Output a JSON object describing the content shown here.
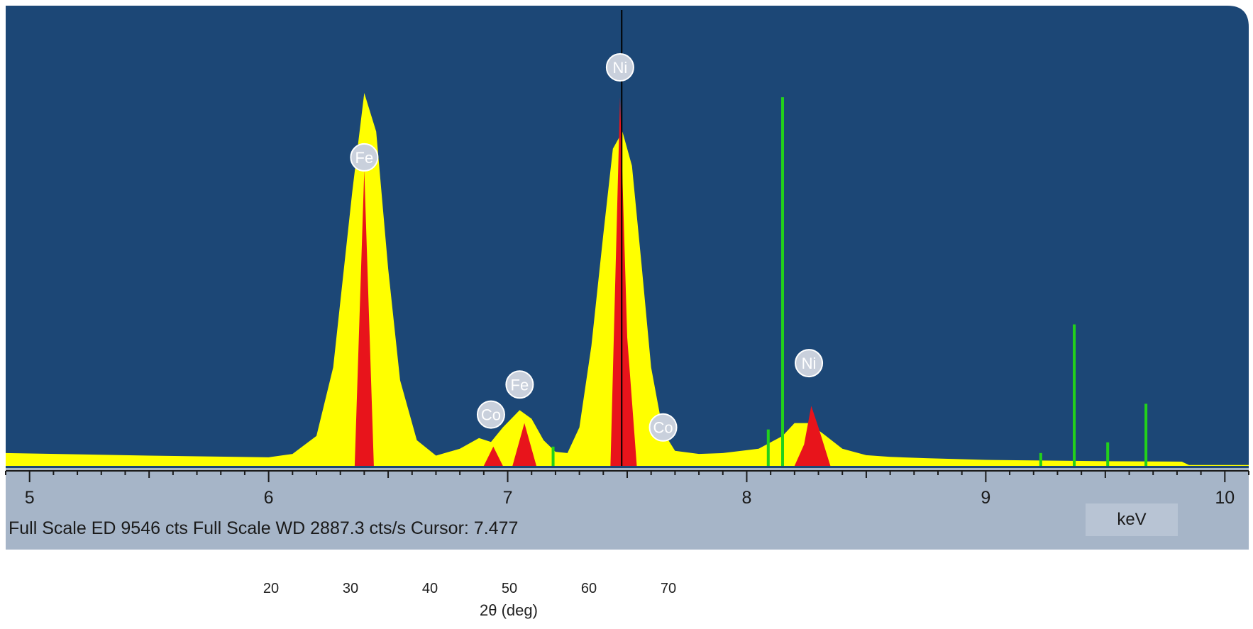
{
  "chart_data": {
    "type": "area",
    "xlabel": "keV",
    "xlim": [
      4.9,
      10.1
    ],
    "ylim": [
      0,
      9546
    ],
    "x_ticks": [
      "5",
      "6",
      "7",
      "8",
      "9",
      "10"
    ],
    "grid": false,
    "legend": "none",
    "series": [
      {
        "color": "#ffff00",
        "x": [
          4.9,
          5.5,
          6.0,
          6.1,
          6.2,
          6.27,
          6.35,
          6.4,
          6.45,
          6.5,
          6.55,
          6.62,
          6.7,
          6.8,
          6.88,
          6.93,
          6.98,
          7.05,
          7.1,
          7.15,
          7.2,
          7.25,
          7.3,
          7.35,
          7.4,
          7.44,
          7.48,
          7.52,
          7.56,
          7.6,
          7.65,
          7.7,
          7.8,
          7.9,
          8.05,
          8.15,
          8.2,
          8.26,
          8.32,
          8.4,
          8.5,
          8.6,
          8.75,
          9.0,
          9.5,
          9.82,
          9.85,
          10.1
        ],
        "values": [
          300,
          240,
          200,
          280,
          700,
          2300,
          6400,
          8700,
          7800,
          4600,
          2000,
          600,
          240,
          400,
          650,
          560,
          900,
          1300,
          1100,
          600,
          330,
          300,
          900,
          2800,
          5400,
          7400,
          7800,
          7000,
          4700,
          2300,
          800,
          350,
          280,
          300,
          400,
          700,
          1000,
          1000,
          750,
          400,
          250,
          210,
          180,
          140,
          110,
          100,
          20,
          20
        ]
      },
      {
        "color": "#e8141b",
        "x": [
          4.9,
          6.36,
          6.4,
          6.44,
          6.9,
          6.94,
          6.98,
          7.02,
          7.07,
          7.12,
          7.43,
          7.47,
          7.5,
          7.54,
          7.6,
          8.2,
          8.24,
          8.27,
          8.3,
          8.35,
          8.7,
          10.1
        ],
        "values": [
          0,
          0,
          6900,
          0,
          0,
          450,
          0,
          0,
          1000,
          0,
          0,
          8600,
          3000,
          0,
          0,
          0,
          500,
          1400,
          900,
          0,
          0,
          0
        ]
      }
    ],
    "wd_lines": [
      {
        "x": 7.19,
        "y": 450
      },
      {
        "x": 8.09,
        "y": 850
      },
      {
        "x": 8.15,
        "y": 8600
      },
      {
        "x": 9.23,
        "y": 300
      },
      {
        "x": 9.37,
        "y": 3300
      },
      {
        "x": 9.51,
        "y": 550
      },
      {
        "x": 9.67,
        "y": 1450
      }
    ],
    "element_markers": [
      {
        "label": "Fe",
        "x": 6.4,
        "y": 6900
      },
      {
        "label": "Co",
        "x": 6.93,
        "y": 900
      },
      {
        "label": "Fe",
        "x": 7.05,
        "y": 1600
      },
      {
        "label": "Ni",
        "x": 7.47,
        "y": 9000
      },
      {
        "label": "Co",
        "x": 7.65,
        "y": 600
      },
      {
        "label": "Ni",
        "x": 8.26,
        "y": 2100
      }
    ],
    "cursor": 7.477
  },
  "status": {
    "text": "Full Scale ED 9546  cts  Full Scale WD 2887.3 cts/s  Cursor: 7.477",
    "unit": "keV"
  },
  "colors": {
    "panel": "#1c4776",
    "axis_band": "#a6b5c8",
    "ed_spectrum": "#ffff00",
    "peak": "#e8141b",
    "wd_line": "#22d11b",
    "marker_bubble": "#c9d0dc"
  },
  "secondary_axis": {
    "ticks": [
      "20",
      "30",
      "40",
      "50",
      "60",
      "70"
    ],
    "label": "2θ (deg)"
  }
}
